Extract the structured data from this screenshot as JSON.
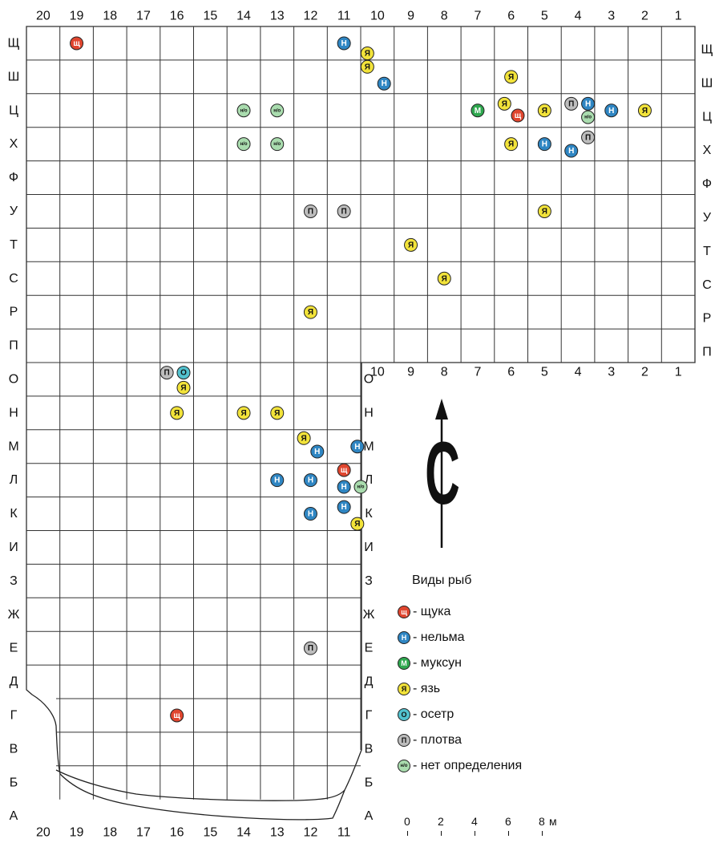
{
  "top_columns": [
    "20",
    "19",
    "18",
    "17",
    "16",
    "15",
    "14",
    "13",
    "12",
    "11",
    "10",
    "9",
    "8",
    "7",
    "6",
    "5",
    "4",
    "3",
    "2",
    "1"
  ],
  "ne_bottom_columns": [
    "10",
    "9",
    "8",
    "7",
    "6",
    "5",
    "4",
    "3",
    "2",
    "1"
  ],
  "bottom_columns": [
    "20",
    "19",
    "18",
    "17",
    "16",
    "15",
    "14",
    "13",
    "12",
    "11"
  ],
  "left_rows": [
    "Щ",
    "Ш",
    "Ц",
    "Х",
    "Ф",
    "У",
    "Т",
    "С",
    "Р",
    "П",
    "О",
    "Н",
    "М",
    "Л",
    "К",
    "И",
    "З",
    "Ж",
    "Е",
    "Д",
    "Г",
    "В",
    "Б",
    "А"
  ],
  "right_rows_upper": [
    "Щ",
    "Ш",
    "Ц",
    "Х",
    "Ф",
    "У",
    "Т",
    "С",
    "Р",
    "П"
  ],
  "right_rows_lower": [
    "О",
    "Н",
    "М",
    "Л",
    "К",
    "И",
    "З",
    "Ж",
    "Е",
    "Д",
    "Г",
    "В",
    "Б",
    "А"
  ],
  "north_symbol": "С",
  "legend": {
    "title": "Виды рыб",
    "items": [
      {
        "code": "щ",
        "glyph": "щ",
        "label": "- щука",
        "color": "#e0462f"
      },
      {
        "code": "н",
        "glyph": "Н",
        "label": "- нельма",
        "color": "#2f86c3"
      },
      {
        "code": "м",
        "glyph": "М",
        "label": "- муксун",
        "color": "#2fa84f"
      },
      {
        "code": "я",
        "glyph": "Я",
        "label": "- язь",
        "color": "#f2e33a"
      },
      {
        "code": "о",
        "glyph": "О",
        "label": "- осетр",
        "color": "#52c2cf"
      },
      {
        "code": "п",
        "glyph": "П",
        "label": "- плотва",
        "color": "#bdbdbd"
      },
      {
        "code": "нo",
        "glyph": "н/о",
        "label": "- нет определения",
        "color": "#a9dcae"
      }
    ]
  },
  "scale": {
    "ticks": [
      "0",
      "2",
      "4",
      "6",
      "8"
    ],
    "unit": "м"
  },
  "finds": [
    {
      "type": "щ",
      "col": 19,
      "row": "Щ"
    },
    {
      "type": "н",
      "col": 11,
      "row": "Щ"
    },
    {
      "type": "я",
      "col": 10.3,
      "row": "Щ",
      "dy": 0.3
    },
    {
      "type": "я",
      "col": 10.3,
      "row": "Ш",
      "dy": -0.3
    },
    {
      "type": "н",
      "col": 9.8,
      "row": "Ш",
      "dy": 0.2
    },
    {
      "type": "я",
      "col": 6,
      "row": "Ш"
    },
    {
      "type": "нo",
      "col": 14,
      "row": "Ц"
    },
    {
      "type": "нo",
      "col": 13,
      "row": "Ц"
    },
    {
      "type": "м",
      "col": 7,
      "row": "Ц"
    },
    {
      "type": "я",
      "col": 6.2,
      "row": "Ц",
      "dy": -0.2
    },
    {
      "type": "щ",
      "col": 5.8,
      "row": "Ц",
      "dy": 0.15
    },
    {
      "type": "я",
      "col": 5,
      "row": "Ц"
    },
    {
      "type": "п",
      "col": 4.2,
      "row": "Ц",
      "dy": -0.2
    },
    {
      "type": "н",
      "col": 3.7,
      "row": "Ц",
      "dy": -0.2
    },
    {
      "type": "нo",
      "col": 3.7,
      "row": "Ц",
      "dy": 0.2
    },
    {
      "type": "н",
      "col": 3,
      "row": "Ц"
    },
    {
      "type": "я",
      "col": 2,
      "row": "Ц"
    },
    {
      "type": "нo",
      "col": 14,
      "row": "Х"
    },
    {
      "type": "нo",
      "col": 13,
      "row": "Х"
    },
    {
      "type": "я",
      "col": 6,
      "row": "Х"
    },
    {
      "type": "н",
      "col": 5,
      "row": "Х"
    },
    {
      "type": "п",
      "col": 3.7,
      "row": "Х",
      "dy": -0.2
    },
    {
      "type": "н",
      "col": 4.2,
      "row": "Х",
      "dy": 0.2
    },
    {
      "type": "п",
      "col": 12,
      "row": "У"
    },
    {
      "type": "п",
      "col": 11,
      "row": "У"
    },
    {
      "type": "я",
      "col": 5,
      "row": "У"
    },
    {
      "type": "я",
      "col": 9,
      "row": "Т"
    },
    {
      "type": "я",
      "col": 8,
      "row": "С"
    },
    {
      "type": "я",
      "col": 12,
      "row": "Р"
    },
    {
      "type": "п",
      "col": 16.3,
      "row": "О",
      "dy": -0.2
    },
    {
      "type": "о",
      "col": 15.8,
      "row": "О",
      "dy": -0.2
    },
    {
      "type": "я",
      "col": 15.8,
      "row": "О",
      "dy": 0.25
    },
    {
      "type": "я",
      "col": 16,
      "row": "Н"
    },
    {
      "type": "я",
      "col": 14,
      "row": "Н"
    },
    {
      "type": "я",
      "col": 13,
      "row": "Н"
    },
    {
      "type": "я",
      "col": 12.2,
      "row": "М",
      "dy": -0.25
    },
    {
      "type": "н",
      "col": 11.8,
      "row": "М",
      "dy": 0.15
    },
    {
      "type": "н",
      "col": 10.6,
      "row": "М"
    },
    {
      "type": "н",
      "col": 13,
      "row": "Л"
    },
    {
      "type": "н",
      "col": 12,
      "row": "Л"
    },
    {
      "type": "щ",
      "col": 11,
      "row": "Л",
      "dy": -0.3
    },
    {
      "type": "н",
      "col": 11,
      "row": "Л",
      "dy": 0.2
    },
    {
      "type": "нo",
      "col": 10.5,
      "row": "Л",
      "dy": 0.2
    },
    {
      "type": "н",
      "col": 12,
      "row": "К"
    },
    {
      "type": "н",
      "col": 11,
      "row": "К",
      "dy": -0.2
    },
    {
      "type": "я",
      "col": 10.6,
      "row": "К",
      "dy": 0.3
    },
    {
      "type": "п",
      "col": 12,
      "row": "Е"
    },
    {
      "type": "щ",
      "col": 16,
      "row": "Г"
    }
  ]
}
